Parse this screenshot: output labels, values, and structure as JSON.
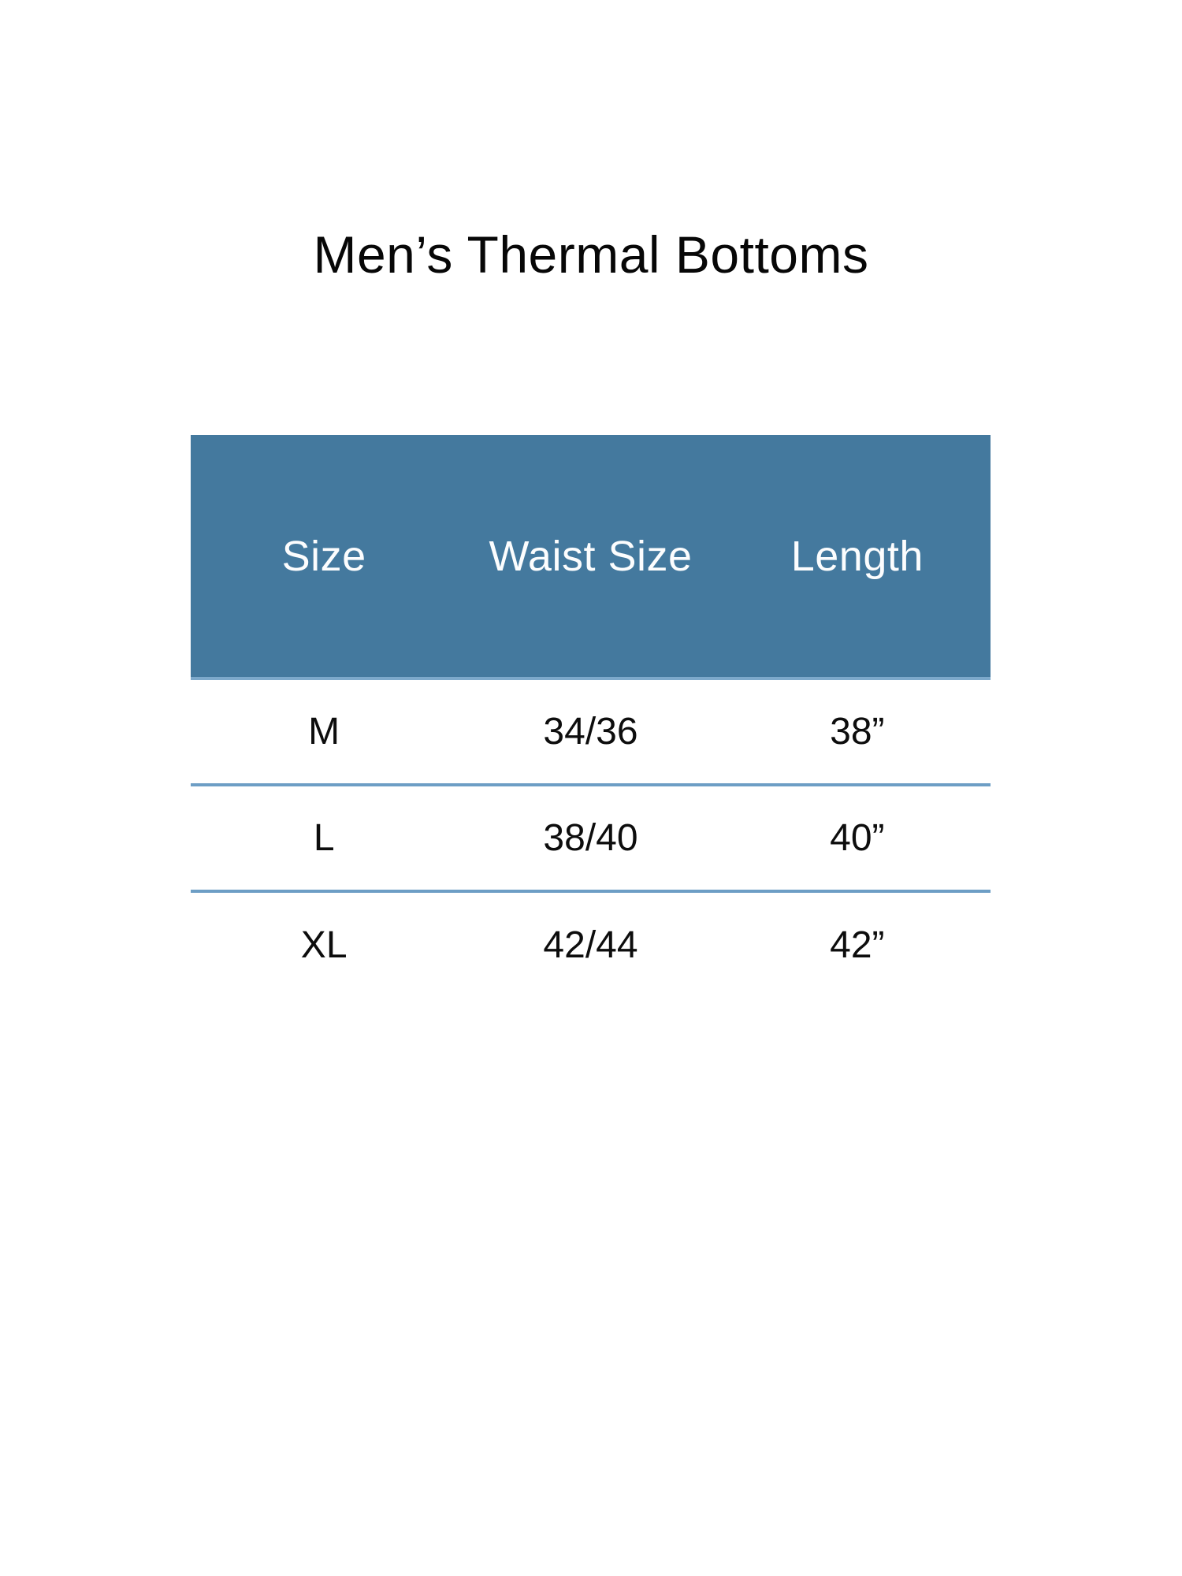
{
  "page": {
    "title": "Men’s Thermal Bottoms"
  },
  "size_chart": {
    "columns": [
      "Size",
      "Waist Size",
      "Length"
    ],
    "rows": [
      {
        "size": "M",
        "waist": "34/36",
        "length": "38”"
      },
      {
        "size": "L",
        "waist": "38/40",
        "length": "40”"
      },
      {
        "size": "XL",
        "waist": "42/44",
        "length": "42”"
      }
    ],
    "colors": {
      "header_background": "#44799e",
      "header_text": "#fcfdfe",
      "header_underline": "#7da9cb",
      "row_divider": "#6d9ec5",
      "body_text": "#0d0d0d"
    }
  }
}
